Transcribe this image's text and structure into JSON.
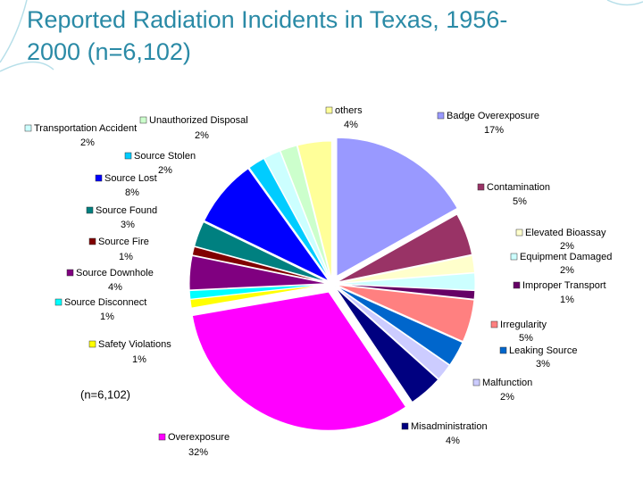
{
  "chart_data": {
    "type": "pie",
    "title": "Reported Radiation Incidents in Texas, 1956-2000 (n=6,102)",
    "annotation": "(n=6,102)",
    "categories": [
      "Badge Overexposure",
      "Contamination",
      "Elevated Bioassay",
      "Equipment Damaged",
      "Improper Transport",
      "Irregularity",
      "Leaking Source",
      "Malfunction",
      "Misadministration",
      "Overexposure",
      "Safety Violations",
      "Source Disconnect",
      "Source Downhole",
      "Source Fire",
      "Source Found",
      "Source Lost",
      "Source Stolen",
      "Transportation Accident",
      "Unauthorized Disposal",
      "others"
    ],
    "values": [
      17,
      5,
      2,
      2,
      1,
      5,
      3,
      2,
      4,
      32,
      1,
      1,
      4,
      1,
      3,
      8,
      2,
      2,
      2,
      4
    ],
    "value_labels": [
      "17%",
      "5%",
      "2%",
      "2%",
      "1%",
      "5%",
      "3%",
      "2%",
      "4%",
      "32%",
      "1%",
      "1%",
      "4%",
      "1%",
      "3%",
      "8%",
      "2%",
      "2%",
      "2%",
      "4%"
    ],
    "colors": [
      "#9999ff",
      "#993366",
      "#ffffcc",
      "#ccffff",
      "#660066",
      "#ff8080",
      "#0066cc",
      "#ccccff",
      "#000080",
      "#ff00ff",
      "#ffff00",
      "#00ffff",
      "#800080",
      "#800000",
      "#008080",
      "#0000ff",
      "#00ccff",
      "#ccffff",
      "#ccffcc",
      "#ffff99"
    ]
  }
}
